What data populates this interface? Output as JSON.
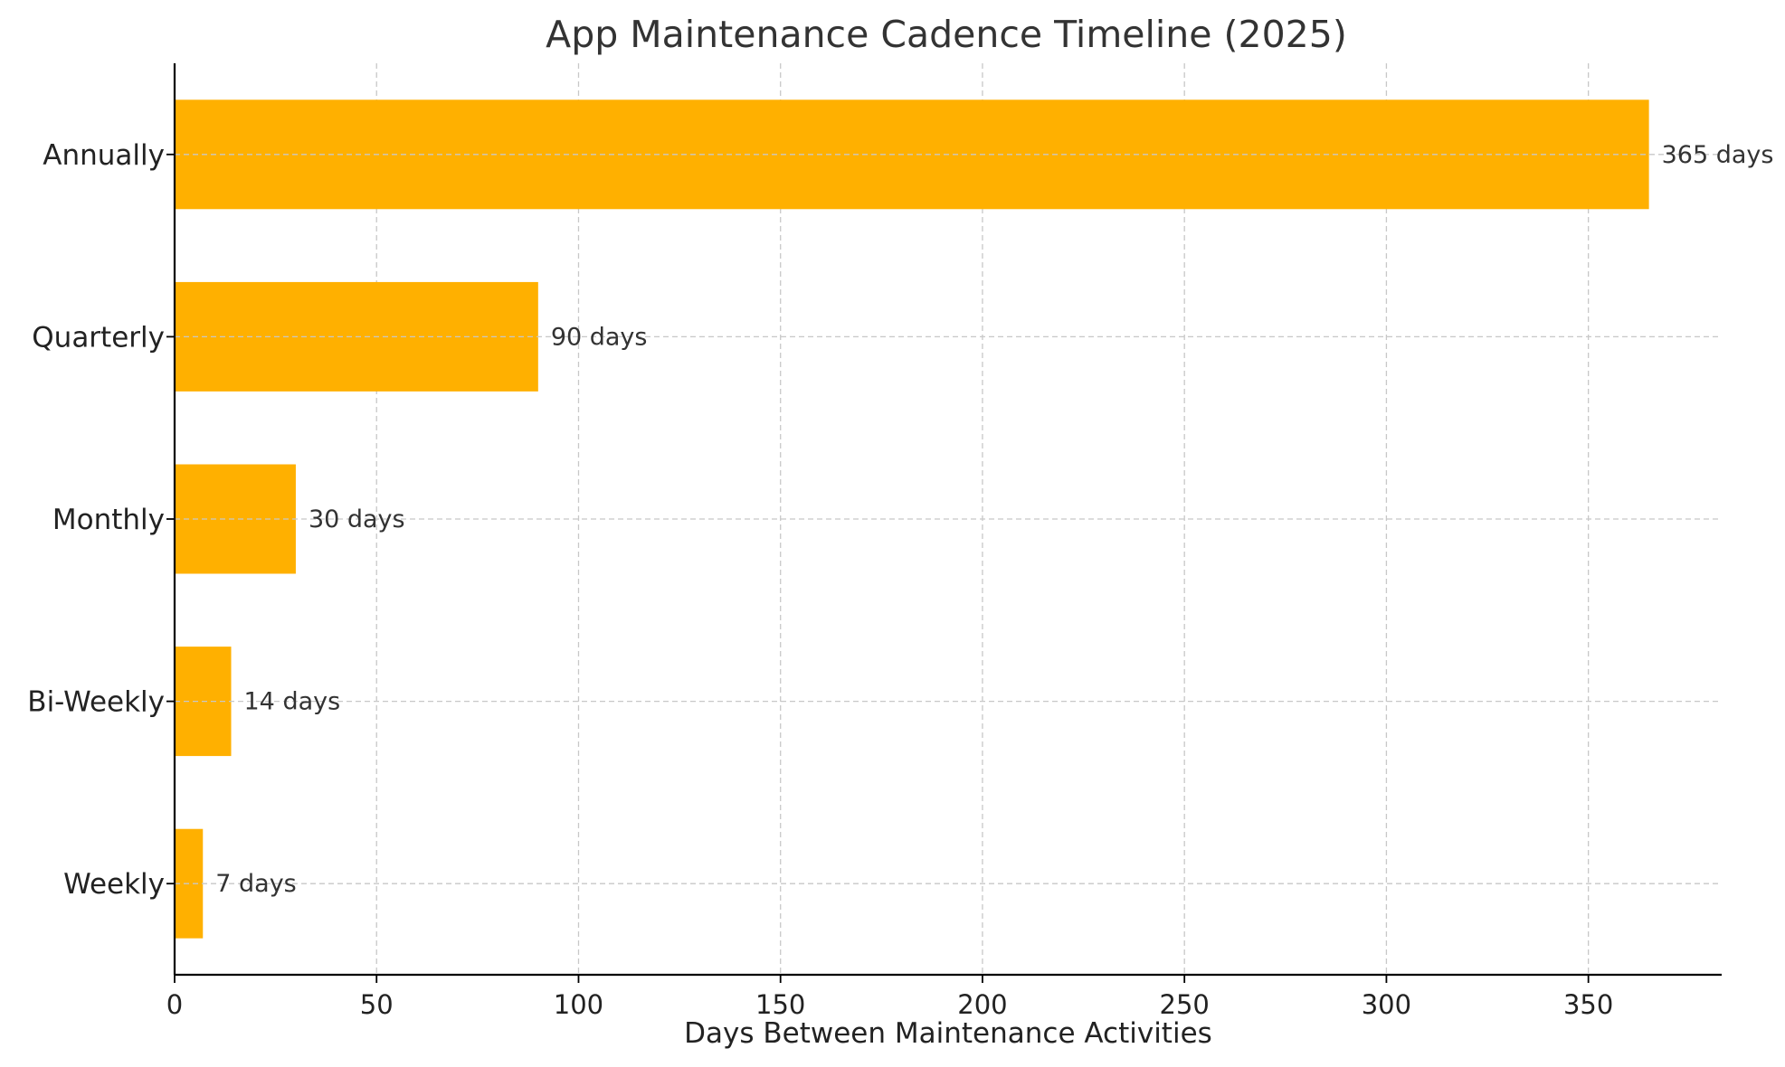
{
  "chart_data": {
    "type": "bar",
    "orientation": "horizontal",
    "title": "App Maintenance Cadence Timeline (2025)",
    "xlabel": "Days Between Maintenance Activities",
    "ylabel": "",
    "categories": [
      "Weekly",
      "Bi-Weekly",
      "Monthly",
      "Quarterly",
      "Annually"
    ],
    "values": [
      7,
      14,
      30,
      90,
      365
    ],
    "data_labels": [
      "7 days",
      "14 days",
      "30 days",
      "90 days",
      "365 days"
    ],
    "xlim": [
      0,
      383
    ],
    "xticks": [
      0,
      50,
      100,
      150,
      200,
      250,
      300,
      350
    ],
    "grid": true,
    "legend": "none",
    "colors": {
      "bar": "#FFB000",
      "grid": "#c8c8c8",
      "axis": "#000000"
    }
  }
}
